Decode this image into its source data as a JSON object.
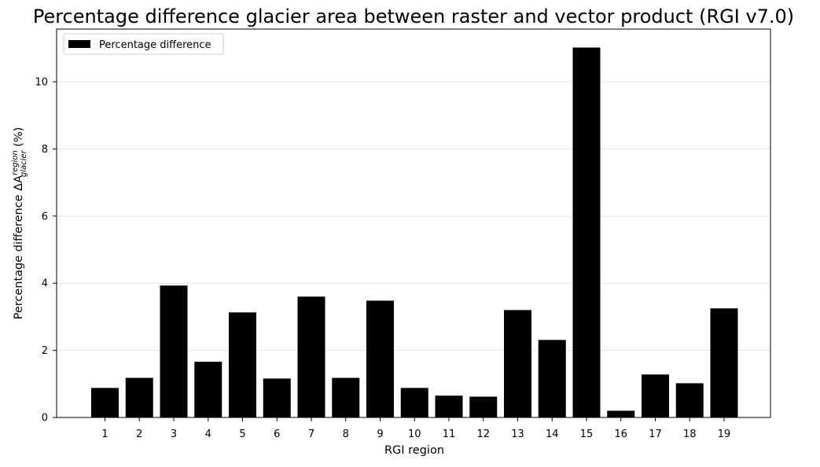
{
  "chart_data": {
    "type": "bar",
    "title": "Percentage difference glacier area between raster and vector product (RGI v7.0)",
    "xlabel": "RGI region",
    "ylabel_prefix": "Percentage difference ΔA",
    "ylabel_superscript": "region",
    "ylabel_subscript": "glacier",
    "ylabel_suffix": " (%)",
    "categories": [
      "1",
      "2",
      "3",
      "4",
      "5",
      "6",
      "7",
      "8",
      "9",
      "10",
      "11",
      "12",
      "13",
      "14",
      "15",
      "16",
      "17",
      "18",
      "19"
    ],
    "series": [
      {
        "name": "Percentage difference",
        "color": "#000000",
        "values": [
          0.88,
          1.18,
          3.93,
          1.66,
          3.13,
          1.16,
          3.6,
          1.18,
          3.48,
          0.88,
          0.65,
          0.62,
          3.2,
          2.31,
          11.02,
          0.2,
          1.28,
          1.02,
          3.25
        ]
      }
    ],
    "ylim": [
      0,
      11.57
    ],
    "yticks": [
      0,
      2,
      4,
      6,
      8,
      10
    ],
    "grid": "horizontal",
    "legend": "top-left"
  }
}
